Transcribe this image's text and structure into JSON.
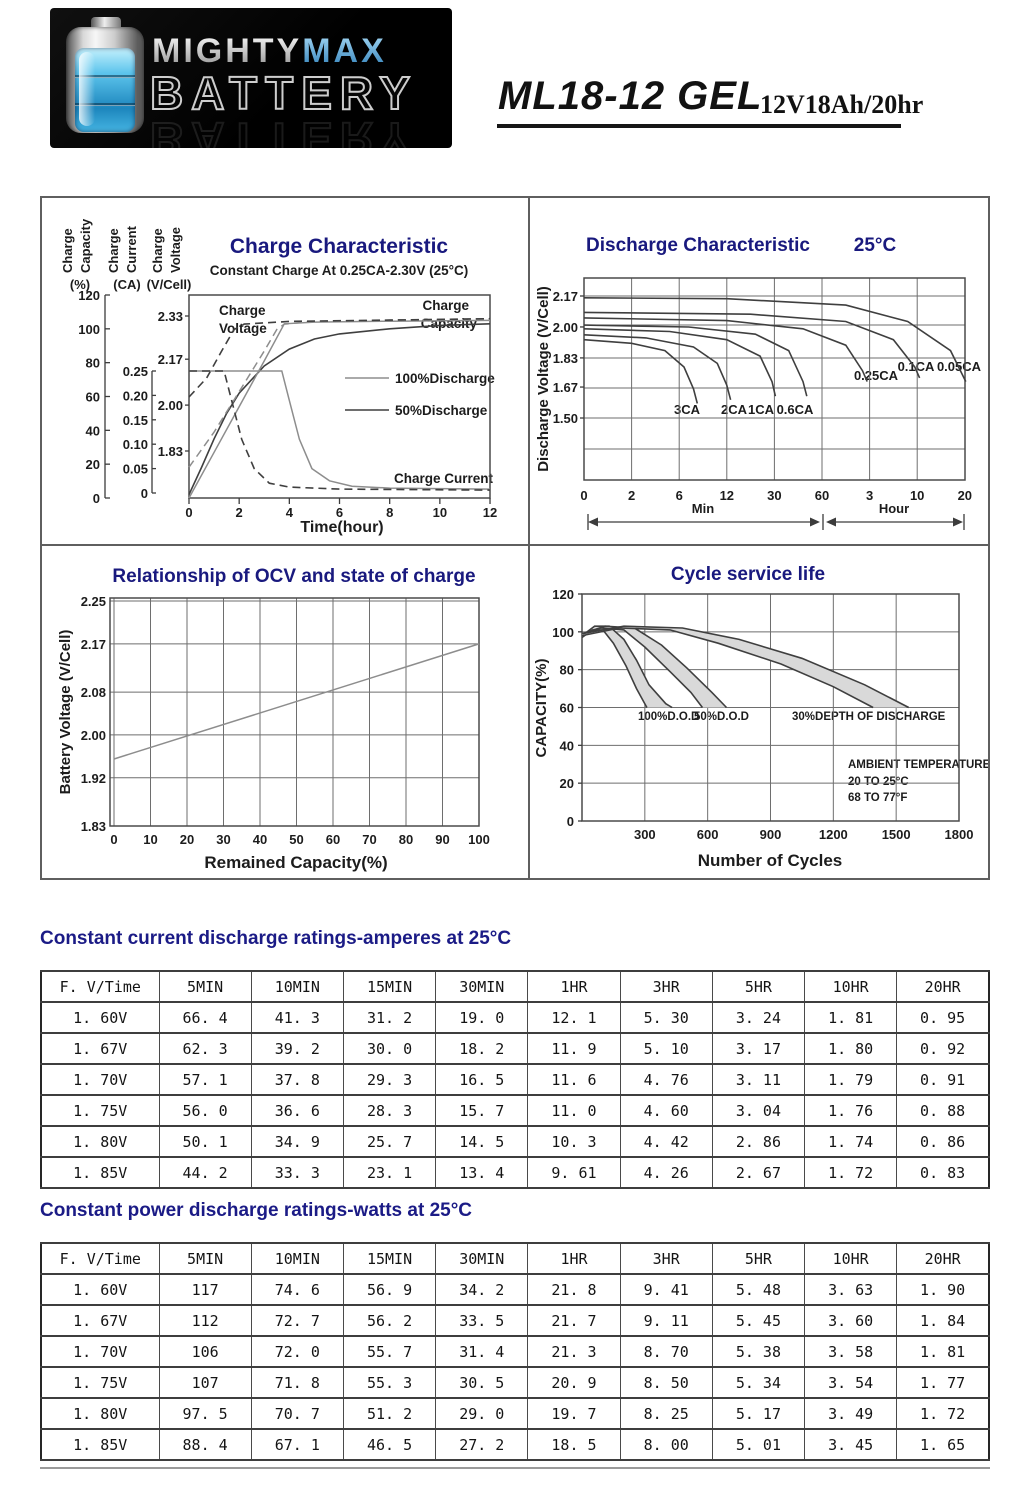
{
  "header": {
    "logo": {
      "brand_top_1": "MIGHTY",
      "brand_top_2": "MAX",
      "brand_bottom": "BATTERY"
    },
    "model": "ML18-12 GEL",
    "spec": "12V18Ah/20hr"
  },
  "colors": {
    "accent_navy": "#1b1b86",
    "logo_blue": "#55aede",
    "text_black": "#141414",
    "curve_light": "#8d8d8d",
    "curve_dark": "#3f3f3f",
    "band_fill": "#d9d9d9"
  },
  "chart_data": [
    {
      "type": "line",
      "title": "Charge Characteristic",
      "subtitle": "Constant Charge At 0.25CA-2.30V (25°C)",
      "xlabel": "Time(hour)",
      "x_ticks": [
        "0",
        "2",
        "4",
        "6",
        "8",
        "10",
        "12"
      ],
      "xlim": [
        0,
        12
      ],
      "axes": [
        {
          "label_lines": [
            "Charge",
            "Capacity"
          ],
          "unit": "(%)",
          "ticks": [
            "120",
            "100",
            "80",
            "60",
            "40",
            "20",
            "0"
          ],
          "range": [
            0,
            120
          ]
        },
        {
          "label_lines": [
            "Charge",
            "Current"
          ],
          "unit": "(CA)",
          "ticks": [
            "0.25",
            "0.20",
            "0.15",
            "0.10",
            "0.05",
            "0"
          ],
          "range": [
            0,
            0.25
          ]
        },
        {
          "label_lines": [
            "Charge",
            "Voltage"
          ],
          "unit": "(V/Cell)",
          "ticks": [
            "2.33",
            "2.17",
            "2.00",
            "1.83"
          ],
          "range": [
            1.83,
            2.33
          ]
        }
      ],
      "annotations": {
        "charge_voltage": [
          "Charge",
          "Voltage"
        ],
        "charge_capacity": [
          "Charge",
          "Capacity"
        ],
        "charge_current": "Charge Current"
      },
      "legend": [
        "100%Discharge",
        "50%Discharge"
      ],
      "series": [
        {
          "name": "charge-capacity-50%discharge",
          "axis": "capacity",
          "stroke": "dark",
          "dash": false,
          "points": [
            [
              0,
              2
            ],
            [
              0.5,
              18
            ],
            [
              1,
              35
            ],
            [
              1.5,
              50
            ],
            [
              2,
              62
            ],
            [
              3,
              78
            ],
            [
              4,
              88
            ],
            [
              5,
              94
            ],
            [
              6,
              97
            ],
            [
              8,
              100
            ],
            [
              10,
              102
            ],
            [
              12,
              103
            ]
          ]
        },
        {
          "name": "charge-capacity-100%discharge",
          "axis": "capacity",
          "stroke": "light",
          "dash": false,
          "points": [
            [
              0,
              0
            ],
            [
              1,
              27
            ],
            [
              2,
              54
            ],
            [
              3,
              81
            ],
            [
              3.8,
              103
            ],
            [
              5,
              104
            ],
            [
              8,
              104.5
            ],
            [
              12,
              105
            ]
          ]
        },
        {
          "name": "charge-voltage-100%discharge",
          "axis": "voltage",
          "stroke": "light",
          "dash": true,
          "points": [
            [
              0,
              1.77
            ],
            [
              1,
              1.9
            ],
            [
              2,
              2.05
            ],
            [
              3,
              2.2
            ],
            [
              3.5,
              2.28
            ],
            [
              3.8,
              2.3
            ],
            [
              5,
              2.31
            ],
            [
              8,
              2.315
            ],
            [
              12,
              2.32
            ]
          ]
        },
        {
          "name": "charge-voltage-50%discharge",
          "axis": "voltage",
          "stroke": "dark",
          "dash": true,
          "points": [
            [
              0,
              2.03
            ],
            [
              0.7,
              2.1
            ],
            [
              1.3,
              2.2
            ],
            [
              1.8,
              2.28
            ],
            [
              2.2,
              2.3
            ],
            [
              4,
              2.31
            ],
            [
              8,
              2.315
            ],
            [
              12,
              2.32
            ]
          ]
        },
        {
          "name": "charge-current-100%discharge",
          "axis": "current",
          "stroke": "light",
          "dash": false,
          "points": [
            [
              0,
              0.25
            ],
            [
              3.7,
              0.25
            ],
            [
              4,
              0.19
            ],
            [
              4.4,
              0.11
            ],
            [
              4.9,
              0.05
            ],
            [
              5.6,
              0.025
            ],
            [
              6.5,
              0.014
            ],
            [
              8,
              0.01
            ],
            [
              12,
              0.008
            ]
          ]
        },
        {
          "name": "charge-current-50%discharge",
          "axis": "current",
          "stroke": "dark",
          "dash": true,
          "points": [
            [
              0,
              0.25
            ],
            [
              1.4,
              0.25
            ],
            [
              1.7,
              0.19
            ],
            [
              2.1,
              0.11
            ],
            [
              2.6,
              0.05
            ],
            [
              3.2,
              0.02
            ],
            [
              4,
              0.012
            ],
            [
              6,
              0.008
            ],
            [
              12,
              0.006
            ]
          ]
        }
      ]
    },
    {
      "type": "line",
      "title": "Discharge Characteristic",
      "temperature": "25°C",
      "ylabel": "Discharge Voltage (V/Cell)",
      "y_ticks": [
        "2.17",
        "2.00",
        "1.83",
        "1.67",
        "1.50"
      ],
      "x_ticks": [
        "0",
        "2",
        "6",
        "12",
        "30",
        "60",
        "3",
        "10",
        "20"
      ],
      "x_sections": [
        "Min",
        "Hour"
      ],
      "curves": [
        {
          "label": "3CA",
          "points": [
            [
              0,
              1.93
            ],
            [
              1,
              1.91
            ],
            [
              1.7,
              1.87
            ],
            [
              2.1,
              1.78
            ],
            [
              2.3,
              1.66
            ],
            [
              2.38,
              1.58
            ]
          ]
        },
        {
          "label": "2CA",
          "points": [
            [
              0,
              1.957
            ],
            [
              1.3,
              1.94
            ],
            [
              2.3,
              1.89
            ],
            [
              2.8,
              1.8
            ],
            [
              3.0,
              1.68
            ],
            [
              3.08,
              1.6
            ]
          ]
        },
        {
          "label": "1CA",
          "points": [
            [
              0,
              1.99
            ],
            [
              1.8,
              1.975
            ],
            [
              3.0,
              1.93
            ],
            [
              3.7,
              1.84
            ],
            [
              3.95,
              1.7
            ],
            [
              4.02,
              1.62
            ]
          ]
        },
        {
          "label": "0.6CA",
          "points": [
            [
              0,
              2.01
            ],
            [
              2.2,
              2.0
            ],
            [
              3.6,
              1.96
            ],
            [
              4.3,
              1.87
            ],
            [
              4.6,
              1.7
            ],
            [
              4.68,
              1.62
            ]
          ]
        },
        {
          "label": "0.25CA",
          "points": [
            [
              0,
              2.05
            ],
            [
              3.0,
              2.035
            ],
            [
              4.6,
              1.99
            ],
            [
              5.5,
              1.9
            ],
            [
              5.85,
              1.76
            ],
            [
              5.95,
              1.7
            ]
          ]
        },
        {
          "label": "0.1CA",
          "points": [
            [
              0,
              2.08
            ],
            [
              3.5,
              2.07
            ],
            [
              5.5,
              2.03
            ],
            [
              6.5,
              1.93
            ],
            [
              6.95,
              1.78
            ],
            [
              7.05,
              1.72
            ]
          ]
        },
        {
          "label": "0.05CA",
          "points": [
            [
              0,
              2.16
            ],
            [
              3.0,
              2.155
            ],
            [
              5.5,
              2.12
            ],
            [
              6.8,
              2.03
            ],
            [
              7.7,
              1.87
            ],
            [
              8.02,
              1.7
            ]
          ]
        }
      ]
    },
    {
      "type": "line",
      "title": "Relationship of OCV and state of charge",
      "ylabel": "Battery Voltage (V/Cell)",
      "xlabel": "Remained Capacity(%)",
      "y_ticks": [
        "2.25",
        "2.17",
        "2.08",
        "2.00",
        "1.92",
        "1.83"
      ],
      "x_ticks": [
        "0",
        "10",
        "20",
        "30",
        "40",
        "50",
        "60",
        "70",
        "80",
        "90",
        "100"
      ],
      "series": [
        {
          "name": "ocv-line",
          "points": [
            [
              0,
              1.955
            ],
            [
              100,
              2.17
            ]
          ]
        }
      ]
    },
    {
      "type": "area",
      "title": "Cycle service life",
      "ylabel": "CAPACITY(%)",
      "xlabel": "Number of Cycles",
      "y_ticks": [
        "120",
        "100",
        "80",
        "60",
        "40",
        "20",
        "0"
      ],
      "x_ticks": [
        "300",
        "600",
        "900",
        "1200",
        "1500",
        "1800"
      ],
      "xlim": [
        0,
        1800
      ],
      "ylim": [
        0,
        120
      ],
      "bands": [
        {
          "label": "100%D.O.D",
          "upper": [
            [
              0,
              98
            ],
            [
              60,
              103
            ],
            [
              130,
              103
            ],
            [
              200,
              96
            ],
            [
              260,
              85
            ],
            [
              320,
              72
            ],
            [
              400,
              62
            ],
            [
              430,
              60
            ]
          ],
          "lower": [
            [
              0,
              97
            ],
            [
              50,
              101
            ],
            [
              100,
              101
            ],
            [
              150,
              94
            ],
            [
              210,
              82
            ],
            [
              260,
              70
            ],
            [
              300,
              62
            ],
            [
              310,
              60
            ]
          ]
        },
        {
          "label": "50%D.O.D",
          "upper": [
            [
              0,
              99
            ],
            [
              110,
              103
            ],
            [
              250,
              102
            ],
            [
              380,
              93
            ],
            [
              500,
              81
            ],
            [
              620,
              68
            ],
            [
              690,
              60
            ]
          ],
          "lower": [
            [
              0,
              98
            ],
            [
              90,
              102
            ],
            [
              200,
              101
            ],
            [
              300,
              92
            ],
            [
              420,
              79
            ],
            [
              520,
              68
            ],
            [
              575,
              60
            ]
          ]
        },
        {
          "label": "30%DEPTH OF DISCHARGE",
          "upper": [
            [
              0,
              99
            ],
            [
              200,
              103
            ],
            [
              480,
              102
            ],
            [
              750,
              96
            ],
            [
              1050,
              86
            ],
            [
              1350,
              72
            ],
            [
              1560,
              60
            ]
          ],
          "lower": [
            [
              0,
              98
            ],
            [
              180,
              102
            ],
            [
              420,
              101
            ],
            [
              650,
              94
            ],
            [
              950,
              83
            ],
            [
              1200,
              71
            ],
            [
              1390,
              60
            ]
          ]
        }
      ],
      "annotation_lines": [
        "AMBIENT TEMPERATURE:",
        "20 TO 25°C",
        "68 TO 77°F"
      ]
    }
  ],
  "tables": [
    {
      "title": "Constant current discharge ratings-amperes at 25°C",
      "headers": [
        "F. V/Time",
        "5MIN",
        "10MIN",
        "15MIN",
        "30MIN",
        "1HR",
        "3HR",
        "5HR",
        "10HR",
        "20HR"
      ],
      "rows": [
        [
          "1. 60V",
          "66. 4",
          "41. 3",
          "31. 2",
          "19. 0",
          "12. 1",
          "5. 30",
          "3. 24",
          "1. 81",
          "0. 95"
        ],
        [
          "1. 67V",
          "62. 3",
          "39. 2",
          "30. 0",
          "18. 2",
          "11. 9",
          "5. 10",
          "3. 17",
          "1. 80",
          "0. 92"
        ],
        [
          "1. 70V",
          "57. 1",
          "37. 8",
          "29. 3",
          "16. 5",
          "11. 6",
          "4. 76",
          "3. 11",
          "1. 79",
          "0. 91"
        ],
        [
          "1. 75V",
          "56. 0",
          "36. 6",
          "28. 3",
          "15. 7",
          "11. 0",
          "4. 60",
          "3. 04",
          "1. 76",
          "0. 88"
        ],
        [
          "1. 80V",
          "50. 1",
          "34. 9",
          "25. 7",
          "14. 5",
          "10. 3",
          "4. 42",
          "2. 86",
          "1. 74",
          "0. 86"
        ],
        [
          "1. 85V",
          "44. 2",
          "33. 3",
          "23. 1",
          "13. 4",
          "9. 61",
          "4. 26",
          "2. 67",
          "1. 72",
          "0. 83"
        ]
      ]
    },
    {
      "title": "Constant power discharge ratings-watts at 25°C",
      "headers": [
        "F. V/Time",
        "5MIN",
        "10MIN",
        "15MIN",
        "30MIN",
        "1HR",
        "3HR",
        "5HR",
        "10HR",
        "20HR"
      ],
      "rows": [
        [
          "1. 60V",
          "117",
          "74. 6",
          "56. 9",
          "34. 2",
          "21. 8",
          "9. 41",
          "5. 48",
          "3. 63",
          "1. 90"
        ],
        [
          "1. 67V",
          "112",
          "72. 7",
          "56. 2",
          "33. 5",
          "21. 7",
          "9. 11",
          "5. 45",
          "3. 60",
          "1. 84"
        ],
        [
          "1. 70V",
          "106",
          "72. 0",
          "55. 7",
          "31. 4",
          "21. 3",
          "8. 70",
          "5. 38",
          "3. 58",
          "1. 81"
        ],
        [
          "1. 75V",
          "107",
          "71. 8",
          "55. 3",
          "30. 5",
          "20. 9",
          "8. 50",
          "5. 34",
          "3. 54",
          "1. 77"
        ],
        [
          "1. 80V",
          "97. 5",
          "70. 7",
          "51. 2",
          "29. 0",
          "19. 7",
          "8. 25",
          "5. 17",
          "3. 49",
          "1. 72"
        ],
        [
          "1. 85V",
          "88. 4",
          "67. 1",
          "46. 5",
          "27. 2",
          "18. 5",
          "8. 00",
          "5. 01",
          "3. 45",
          "1. 65"
        ]
      ]
    }
  ]
}
